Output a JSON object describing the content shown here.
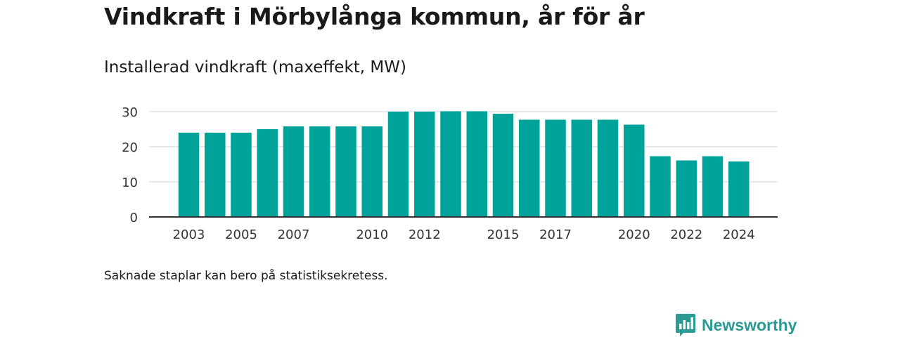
{
  "header": {
    "title": "Vindkraft i Mörbylånga kommun, år för år",
    "subtitle": "Installerad vindkraft (maxeffekt, MW)"
  },
  "footnote": "Saknade staplar kan bero på statistiksekretess.",
  "brand": {
    "name": "Newsworthy",
    "icon": "bar-chart-logo-icon",
    "color": "#2a9a95"
  },
  "chart_data": {
    "type": "bar",
    "title": "Installerad vindkraft (maxeffekt, MW)",
    "xlabel": "",
    "ylabel": "",
    "categories": [
      2003,
      2004,
      2005,
      2006,
      2007,
      2008,
      2009,
      2010,
      2011,
      2012,
      2013,
      2014,
      2015,
      2016,
      2017,
      2018,
      2019,
      2020,
      2021,
      2022,
      2023,
      2024
    ],
    "values": [
      24,
      24,
      24,
      25,
      25.8,
      25.8,
      25.8,
      25.8,
      30,
      30,
      30.1,
      30.1,
      29.4,
      27.7,
      27.7,
      27.7,
      27.7,
      26.3,
      17.3,
      16.1,
      17.3,
      15.8
    ],
    "x_tick_labels": [
      "2003",
      "2005",
      "2007",
      "2010",
      "2012",
      "2015",
      "2017",
      "2020",
      "2022",
      "2024"
    ],
    "y_ticks": [
      0,
      10,
      20,
      30
    ],
    "ylim": [
      0,
      30
    ],
    "grid": true,
    "bar_color": "#00a39a",
    "legend": "none"
  }
}
